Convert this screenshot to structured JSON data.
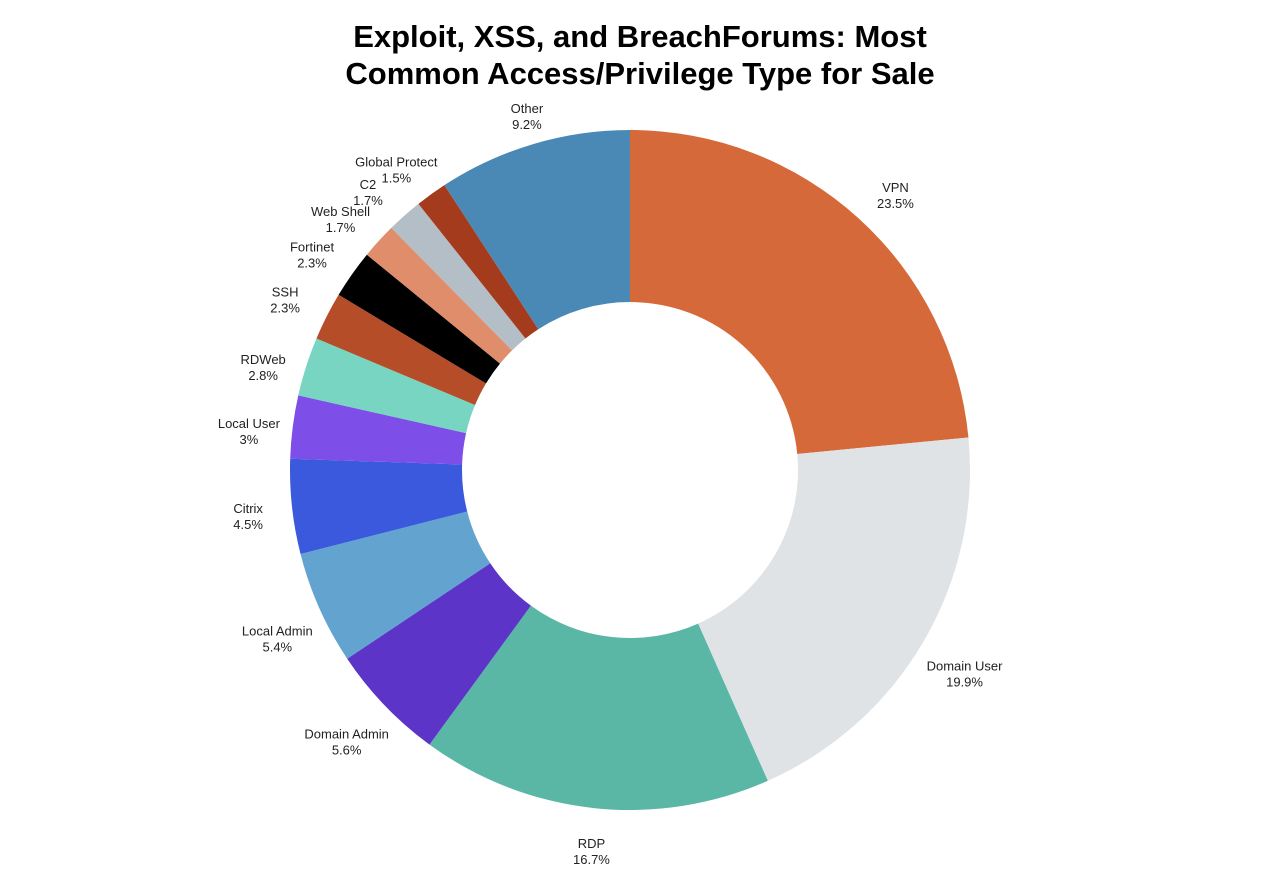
{
  "title_lines": [
    "Exploit, XSS, and BreachForums: Most",
    "Common Access/Privilege Type for Sale"
  ],
  "chart_data": {
    "type": "pie",
    "variant": "donut",
    "title": "Exploit, XSS, and BreachForums: Most Common Access/Privilege Type for Sale",
    "unit": "%",
    "categories": [
      "VPN",
      "Domain User",
      "RDP",
      "Domain Admin",
      "Local Admin",
      "Citrix",
      "Local User",
      "RDWeb",
      "SSH",
      "Fortinet",
      "Web Shell",
      "C2",
      "Global Protect",
      "Other"
    ],
    "values": [
      23.5,
      19.9,
      16.7,
      5.6,
      5.4,
      4.5,
      3,
      2.8,
      2.3,
      2.3,
      1.7,
      1.7,
      1.5,
      9.2
    ],
    "value_labels": [
      "23.5%",
      "19.9%",
      "16.7%",
      "5.6%",
      "5.4%",
      "4.5%",
      "3%",
      "2.8%",
      "2.3%",
      "2.3%",
      "1.7%",
      "1.7%",
      "1.5%",
      "9.2%"
    ],
    "colors": [
      "#d6693a",
      "#dfe3e6",
      "#5ab7a6",
      "#5c35c8",
      "#62a3d0",
      "#3a59dc",
      "#7d4ee8",
      "#77d5c2",
      "#b54d28",
      "#000000",
      "#e08d6b",
      "#b3bec6",
      "#a33b1c",
      "#4a89b6"
    ],
    "legend": "none"
  }
}
